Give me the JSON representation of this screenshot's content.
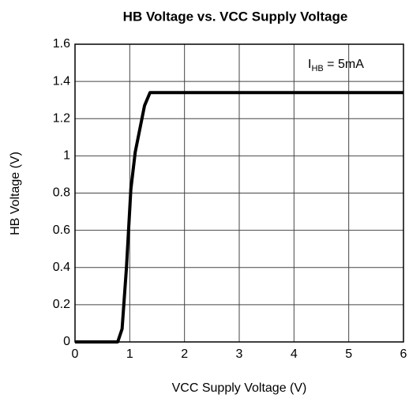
{
  "chart_data": {
    "type": "line",
    "title": "HB Voltage vs. VCC Supply Voltage",
    "x_label": "VCC Supply Voltage (V)",
    "y_label": "HB Voltage (V)",
    "annotation": [
      "I",
      "HB",
      " = 5mA"
    ],
    "x": [
      0,
      0.78,
      0.86,
      0.94,
      1.02,
      1.1,
      1.27,
      1.37,
      6
    ],
    "values": [
      0,
      0,
      0.07,
      0.4,
      0.82,
      1.02,
      1.27,
      1.34,
      1.34
    ],
    "color": "#000000",
    "xlim": [
      0,
      6
    ],
    "xticks": [
      0,
      1,
      2,
      3,
      4,
      5,
      6
    ],
    "ylim": [
      0,
      1.6
    ],
    "yticks": [
      0,
      0.2,
      0.4,
      0.6,
      0.8,
      1,
      1.2,
      1.4,
      1.6
    ],
    "grid": true
  }
}
